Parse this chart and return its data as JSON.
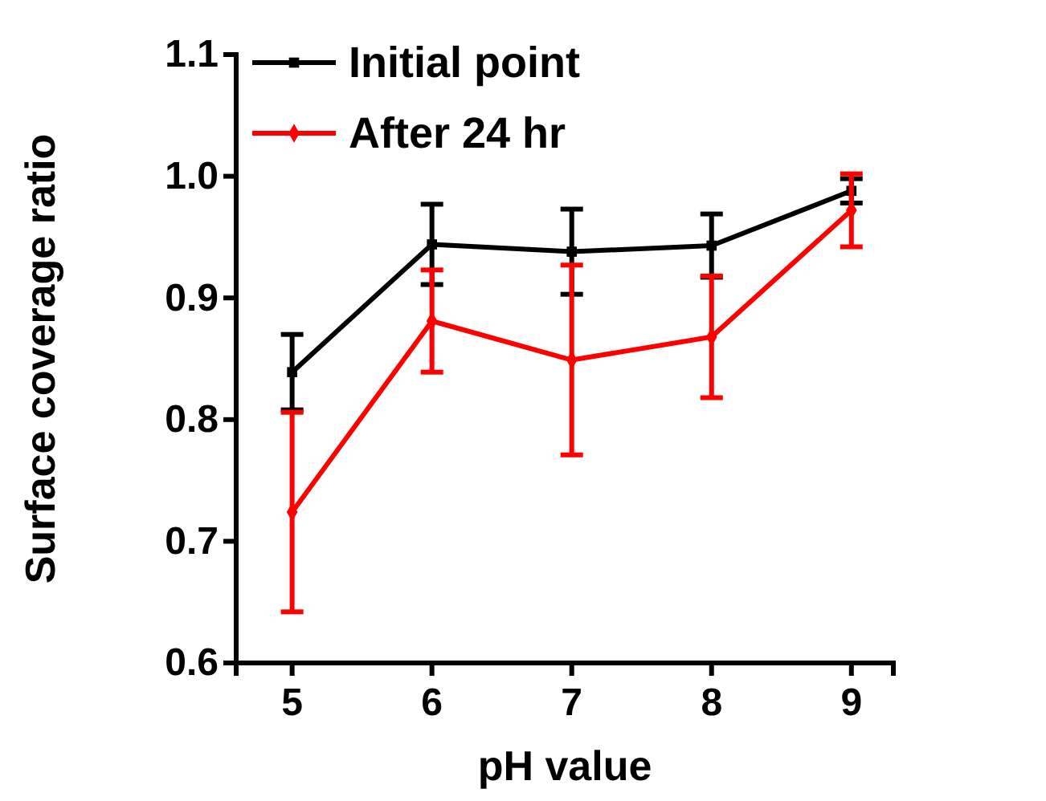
{
  "chart_data": {
    "type": "line",
    "xlabel": "pH value",
    "ylabel": "Surface coverage ratio",
    "x": [
      5,
      6,
      7,
      8,
      9
    ],
    "xlim": [
      4.6,
      9.3
    ],
    "xticks": [
      5,
      6,
      7,
      8,
      9
    ],
    "ylim": [
      0.6,
      1.1
    ],
    "yticks": [
      0.6,
      0.7,
      0.8,
      0.9,
      {
        "value": 1,
        "label": "1.0"
      },
      1.1
    ],
    "legend": "top left",
    "grid": false,
    "series": [
      {
        "name": "Initial point",
        "color": "#000000",
        "marker": "square",
        "values": [
          0.839,
          0.944,
          0.938,
          0.943,
          0.988
        ],
        "errors": [
          0.031,
          0.033,
          0.035,
          0.026,
          0.01
        ]
      },
      {
        "name": "After 24 hr",
        "color": "#ff0000",
        "marker": "diamond",
        "values": [
          0.724,
          0.881,
          0.849,
          0.868,
          0.972
        ],
        "errors": [
          0.082,
          0.042,
          0.078,
          0.05,
          0.03
        ]
      }
    ]
  }
}
